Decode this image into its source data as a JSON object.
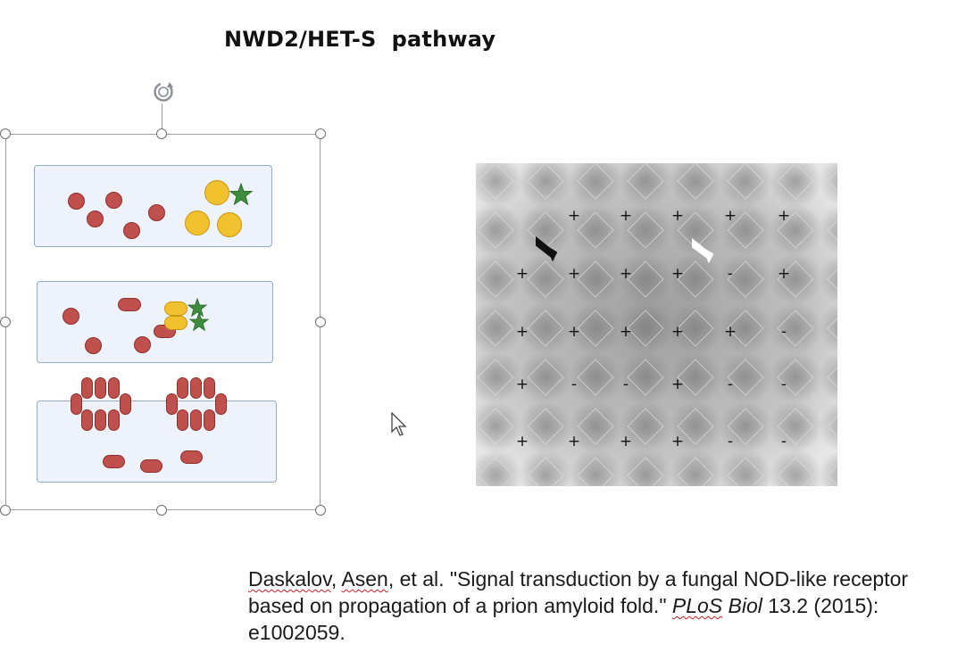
{
  "slide": {
    "title": "NWD2/HET-S  pathway"
  },
  "figure": {
    "selection_handles": 8,
    "rotate_icon": "rotate-icon",
    "colors": {
      "monomer": "#c0504d",
      "receptor": "#f2c12e",
      "ligand_star": "#3e8e3e",
      "panel_fill": "#eef2fb",
      "panel_border": "#94a9d1"
    }
  },
  "assay": {
    "rows": [
      [
        "",
        "+",
        "+",
        "+",
        "+",
        "+"
      ],
      [
        "+",
        "+",
        "+",
        "+",
        "-",
        "+"
      ],
      [
        "+",
        "+",
        "+",
        "+",
        "+",
        "-"
      ],
      [
        "+",
        "-",
        "-",
        "+",
        "-",
        "-"
      ],
      [
        "+",
        "+",
        "+",
        "+",
        "-",
        "-"
      ]
    ],
    "arrows": [
      "black-arrow",
      "white-arrow"
    ]
  },
  "citation": {
    "author1": "Daskalov",
    "sep1": ", ",
    "author2": "Asen",
    "text1": ", et al. \"Signal transduction by a fungal NOD-like receptor based on propagation of a prion amyloid fold.\" ",
    "journal1": "PLoS",
    "journal2": " Biol",
    "text2": " 13.2 (2015): e1002059."
  }
}
